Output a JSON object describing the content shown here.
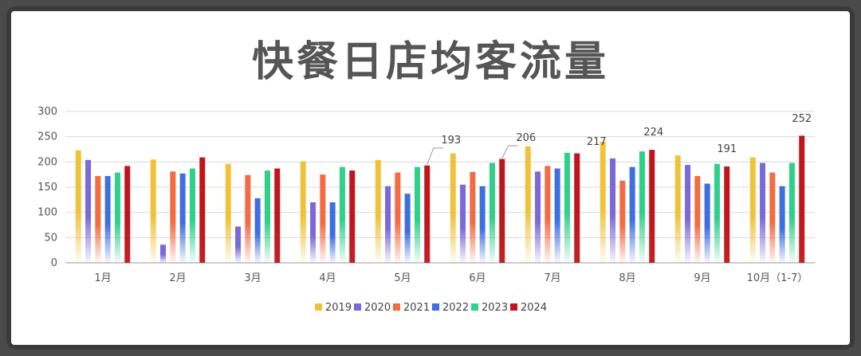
{
  "chart_data": {
    "type": "bar",
    "title": "快餐日店均客流量",
    "categories": [
      "1月",
      "2月",
      "3月",
      "4月",
      "5月",
      "6月",
      "7月",
      "8月",
      "9月",
      "10月（1-7）"
    ],
    "ylim": [
      0,
      300
    ],
    "yticks": [
      0,
      50,
      100,
      150,
      200,
      250,
      300
    ],
    "grid": true,
    "legend_position": "bottom",
    "series": [
      {
        "name": "2019",
        "color": "#f0c23a",
        "values": [
          223,
          205,
          196,
          201,
          204,
          217,
          231,
          240,
          213,
          209
        ]
      },
      {
        "name": "2020",
        "color": "#7b68d9",
        "values": [
          204,
          36,
          72,
          120,
          152,
          155,
          181,
          207,
          194,
          198
        ]
      },
      {
        "name": "2021",
        "color": "#f26b43",
        "values": [
          172,
          181,
          174,
          175,
          179,
          180,
          192,
          163,
          172,
          179
        ]
      },
      {
        "name": "2022",
        "color": "#3e6fe0",
        "values": [
          172,
          177,
          128,
          120,
          137,
          152,
          187,
          190,
          157,
          152
        ]
      },
      {
        "name": "2023",
        "color": "#2fd08a",
        "values": [
          179,
          187,
          183,
          190,
          190,
          198,
          218,
          221,
          196,
          198
        ]
      },
      {
        "name": "2024",
        "color": "#c0151b",
        "values": [
          192,
          209,
          187,
          183,
          193,
          206,
          217,
          224,
          191,
          252
        ]
      }
    ],
    "annotations": [
      {
        "category_index": 4,
        "text": "193"
      },
      {
        "category_index": 5,
        "text": "206"
      },
      {
        "category_index": 7,
        "text": "217"
      },
      {
        "category_index": 7,
        "text": "224"
      },
      {
        "category_index": 8,
        "text": "191"
      },
      {
        "category_index": 9,
        "text": "252"
      }
    ]
  }
}
